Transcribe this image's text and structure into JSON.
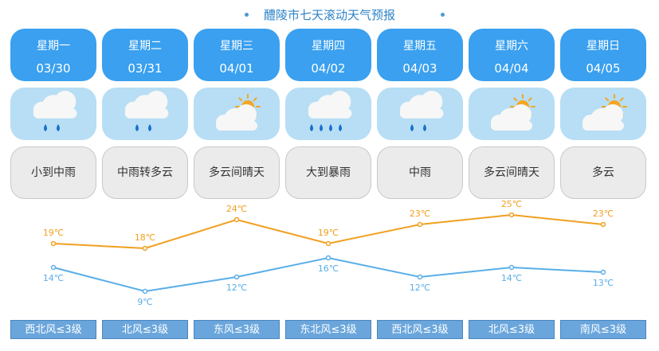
{
  "title": "醴陵市七天滚动天气预报",
  "days": [
    {
      "weekday": "星期一",
      "date": "03/30",
      "icon": "rain-light-icon",
      "desc": "小到中雨",
      "high": "19℃",
      "low": "14℃",
      "wind": "西北风≤3级"
    },
    {
      "weekday": "星期二",
      "date": "03/31",
      "icon": "rain-light-icon",
      "desc": "中雨转多云",
      "high": "18℃",
      "low": "9℃",
      "wind": "北风≤3级"
    },
    {
      "weekday": "星期三",
      "date": "04/01",
      "icon": "partly-cloudy-icon",
      "desc": "多云间晴天",
      "high": "24℃",
      "low": "12℃",
      "wind": "东风≤3级"
    },
    {
      "weekday": "星期四",
      "date": "04/02",
      "icon": "rain-heavy-icon",
      "desc": "大到暴雨",
      "high": "19℃",
      "low": "16℃",
      "wind": "东北风≤3级"
    },
    {
      "weekday": "星期五",
      "date": "04/03",
      "icon": "rain-light-icon",
      "desc": "中雨",
      "high": "23℃",
      "low": "12℃",
      "wind": "西北风≤3级"
    },
    {
      "weekday": "星期六",
      "date": "04/04",
      "icon": "partly-cloudy-icon",
      "desc": "多云间晴天",
      "high": "25℃",
      "low": "14℃",
      "wind": "北风≤3级"
    },
    {
      "weekday": "星期日",
      "date": "04/05",
      "icon": "partly-cloudy-icon",
      "desc": "多云",
      "high": "23℃",
      "low": "13℃",
      "wind": "南风≤3级"
    }
  ],
  "chart_data": {
    "type": "line",
    "categories": [
      "03/30",
      "03/31",
      "04/01",
      "04/02",
      "04/03",
      "04/04",
      "04/05"
    ],
    "series": [
      {
        "values": [
          19,
          18,
          24,
          19,
          23,
          25,
          23
        ],
        "color": "#f0a020"
      },
      {
        "values": [
          14,
          9,
          12,
          16,
          12,
          14,
          13
        ],
        "color": "#5aaee8"
      }
    ]
  },
  "colors": {
    "date_box": "#3aa0ef",
    "icon_box": "#b7def4",
    "desc_box": "#ebebeb",
    "wind_box": "#6aa6dc",
    "title": "#2f84c8"
  }
}
